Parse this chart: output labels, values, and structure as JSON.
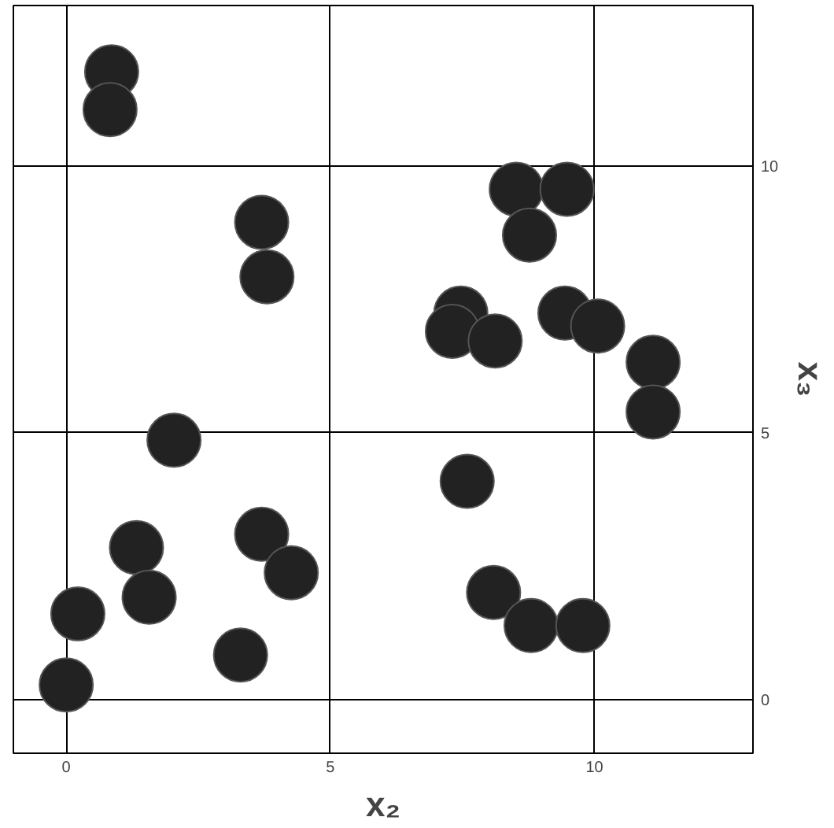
{
  "chart_data": {
    "type": "scatter",
    "xlabel": "x₂",
    "ylabel": "x₃",
    "x": [
      0.86,
      0.83,
      3.7,
      3.8,
      8.52,
      9.48,
      8.77,
      7.47,
      7.31,
      8.12,
      9.44,
      10.06,
      11.11,
      11.11,
      2.04,
      7.59,
      1.33,
      1.57,
      3.7,
      4.26,
      3.3,
      0.22,
      0.0,
      8.09,
      8.8,
      9.78
    ],
    "series": [
      {
        "color": "#222222",
        "values": [
          11.76,
          11.05,
          8.94,
          7.92,
          9.56,
          9.56,
          8.7,
          7.24,
          6.9,
          6.72,
          7.24,
          7.0,
          6.32,
          5.39,
          4.86,
          4.09,
          2.85,
          1.92,
          3.1,
          2.38,
          0.84,
          1.61,
          0.28,
          2.01,
          1.39,
          1.39
        ]
      }
    ],
    "xlim": [
      -1,
      13
    ],
    "ylim": [
      -1,
      13
    ],
    "xticks": [
      0,
      5,
      10
    ],
    "yticks": [
      0,
      5,
      10
    ],
    "grid": true,
    "marker": "circle"
  }
}
